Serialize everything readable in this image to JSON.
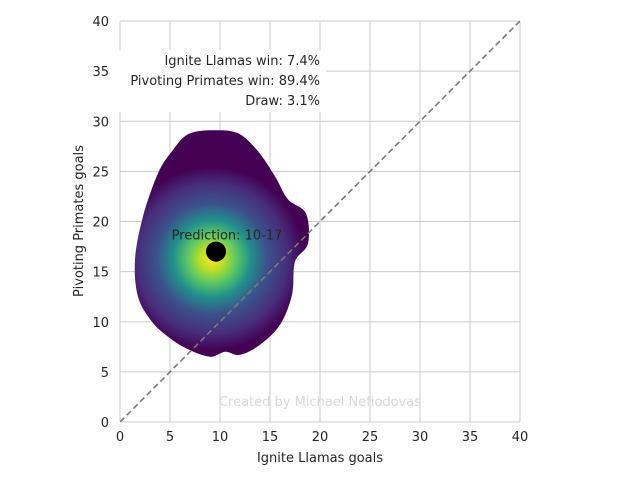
{
  "chart_data": {
    "type": "density",
    "xlabel": "Ignite Llamas goals",
    "ylabel": "Pivoting Primates goals",
    "xlim": [
      0,
      40
    ],
    "ylim": [
      0,
      40
    ],
    "xticks": [
      "0",
      "5",
      "10",
      "15",
      "20",
      "25",
      "30",
      "35",
      "40"
    ],
    "yticks": [
      "0",
      "5",
      "10",
      "15",
      "20",
      "25",
      "30",
      "35",
      "40"
    ],
    "grid": true,
    "colormap": "viridis",
    "reference_line": "y = x (dashed)",
    "density_peak": {
      "x": 9.2,
      "y": 16.3
    },
    "density_outline": [
      [
        9,
        6.5
      ],
      [
        10.5,
        7
      ],
      [
        12,
        6.7
      ],
      [
        14,
        7.7
      ],
      [
        16,
        9.7
      ],
      [
        17.2,
        12.7
      ],
      [
        17.5,
        16
      ],
      [
        18.8,
        17.8
      ],
      [
        18.6,
        20.8
      ],
      [
        16.8,
        22.2
      ],
      [
        15.5,
        24.5
      ],
      [
        13.8,
        27
      ],
      [
        11.8,
        28.8
      ],
      [
        9.3,
        29.1
      ],
      [
        6.8,
        28.7
      ],
      [
        5.2,
        27
      ],
      [
        3.8,
        24.8
      ],
      [
        2.3,
        20.5
      ],
      [
        1.5,
        16.2
      ],
      [
        1.8,
        12.5
      ],
      [
        3.2,
        10
      ],
      [
        4.8,
        8.5
      ],
      [
        6.7,
        7.3
      ]
    ],
    "prediction": {
      "label": "Prediction: 10-17",
      "x": 9.6,
      "y": 17
    },
    "win_probabilities": {
      "team1": "Ignite Llamas win: 7.4%",
      "team2": "Pivoting Primates win: 89.4%",
      "draw": "Draw: 3.1%"
    },
    "watermark": "Created by Michael Nefiodovas"
  },
  "colors": {
    "grid": "#cccccc",
    "dashed_line": "#7a7a7a",
    "viridis_dark": "#440154",
    "viridis_blue": "#3b528b",
    "viridis_teal": "#21918c",
    "viridis_green": "#5ec962",
    "viridis_yellow": "#fde725",
    "point": "#000000"
  }
}
